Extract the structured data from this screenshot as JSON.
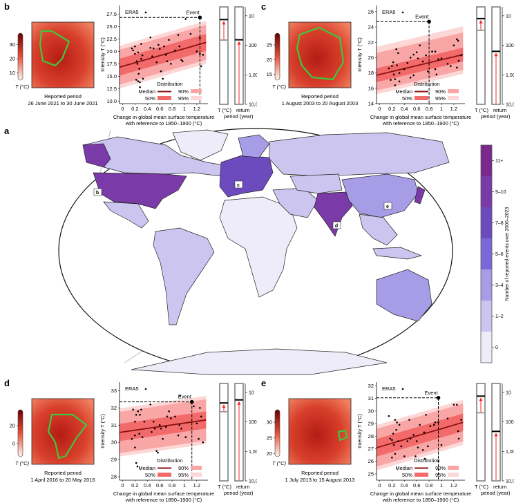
{
  "panels": [
    {
      "id": "b",
      "letter": "b",
      "caption_title": "Reported period",
      "caption_dates": "26 June 2021 to 30 June 2021",
      "colorbar_ticks": [
        10,
        20,
        30
      ],
      "colorbar_range": [
        5,
        38
      ],
      "colorbar_title": "T (°C)"
    },
    {
      "id": "c",
      "letter": "c",
      "caption_title": "Reported period",
      "caption_dates": "1 August 2003 to 20 August 2003",
      "colorbar_ticks": [
        15,
        20,
        25
      ],
      "colorbar_range": [
        13,
        29
      ],
      "colorbar_title": "T (°C)"
    },
    {
      "id": "d",
      "letter": "d",
      "caption_title": "Reported period",
      "caption_dates": "1 April 2016 to 20 May 2016",
      "colorbar_ticks": [
        0,
        20
      ],
      "colorbar_range": [
        -15,
        38
      ],
      "colorbar_title": "T (°C)"
    },
    {
      "id": "e",
      "letter": "e",
      "caption_title": "Reported period",
      "caption_dates": "1 July 2013 to 15 August 2013",
      "colorbar_ticks": [
        20,
        25,
        30
      ],
      "colorbar_range": [
        19,
        34
      ],
      "colorbar_title": "T (°C)"
    }
  ],
  "common": {
    "ylabel": "Intensity T (°C)",
    "xlabel_line1": "Change in global mean surface temperature",
    "xlabel_line2": "with reference to 1850–1900 (°C)",
    "era5_label": "ERA5",
    "event_label": "Event",
    "legend_title": "Distribution",
    "legend_median": "Median",
    "legend_50": "50%",
    "legend_90": "90%",
    "legend_95": "95%",
    "bar_label_left": "T (°C)",
    "bar_label_right_1": "return",
    "bar_label_right_2": "period (year)",
    "return_period_ticks": [
      "10",
      "100",
      "1,000",
      "10,000"
    ],
    "colors": {
      "median": "#8b1010",
      "band50": "#f36a6a",
      "band90": "#f9a6a6",
      "band95": "#fdd6d6",
      "arrow": "#ff2020",
      "event_line": "#000000",
      "baseline_line": "#9a9a9a"
    }
  },
  "chart_data": [
    {
      "panel": "b",
      "type": "scatter",
      "xlim": [
        -0.05,
        1.38
      ],
      "ylim": [
        9.5,
        29.2
      ],
      "xticks": [
        0,
        0.2,
        0.4,
        0.6,
        0.8,
        1.0,
        1.2
      ],
      "yticks": [
        10.0,
        12.5,
        15.0,
        17.5,
        20.0,
        22.5,
        25.0,
        27.5
      ],
      "ytick_decimals": 1,
      "median": [
        [
          0,
          17.0
        ],
        [
          1.35,
          21.8
        ]
      ],
      "band50": [
        -1.7,
        1.7
      ],
      "band90": [
        -3.5,
        3.5
      ],
      "band95": [
        -4.3,
        4.3
      ],
      "event": [
        1.25,
        26.8
      ],
      "return_period_years": 65,
      "left_bar_event_level": 0.87,
      "left_bar_baseline_level": 0.66,
      "points": [
        [
          0.15,
          20.6
        ],
        [
          0.17,
          20.2
        ],
        [
          0.2,
          21
        ],
        [
          0.2,
          19.5
        ],
        [
          0.22,
          14.3
        ],
        [
          0.23,
          18
        ],
        [
          0.24,
          17.5
        ],
        [
          0.25,
          19.8
        ],
        [
          0.25,
          14
        ],
        [
          0.26,
          15.5
        ],
        [
          0.27,
          16.5
        ],
        [
          0.28,
          13.8
        ],
        [
          0.28,
          12.8
        ],
        [
          0.3,
          21.5
        ],
        [
          0.3,
          18.5
        ],
        [
          0.32,
          19.2
        ],
        [
          0.33,
          14.5
        ],
        [
          0.45,
          22.8
        ],
        [
          0.45,
          20.7
        ],
        [
          0.5,
          20.6
        ],
        [
          0.48,
          19
        ],
        [
          0.55,
          17.8
        ],
        [
          0.58,
          21.3
        ],
        [
          0.6,
          20.5
        ],
        [
          0.62,
          16
        ],
        [
          0.65,
          14.5
        ],
        [
          0.67,
          21
        ],
        [
          0.7,
          19.3
        ],
        [
          0.72,
          18
        ],
        [
          0.75,
          22.3
        ],
        [
          0.78,
          17.5
        ],
        [
          0.85,
          20.2
        ],
        [
          0.9,
          23.3
        ],
        [
          0.92,
          21
        ],
        [
          0.95,
          18.3
        ],
        [
          0.97,
          18
        ],
        [
          1.02,
          26.5
        ],
        [
          1.1,
          23.5
        ],
        [
          1.2,
          20
        ],
        [
          1.25,
          19.5
        ],
        [
          1.27,
          17
        ],
        [
          1.3,
          19.3
        ],
        [
          1.25,
          22.7
        ]
      ]
    },
    {
      "panel": "c",
      "type": "scatter",
      "xlim": [
        -0.05,
        1.38
      ],
      "ylim": [
        14,
        26.8
      ],
      "xticks": [
        0,
        0.2,
        0.4,
        0.6,
        0.8,
        1.0,
        1.2
      ],
      "yticks": [
        14,
        16,
        18,
        20,
        22,
        24,
        26
      ],
      "ytick_decimals": 0,
      "median": [
        [
          0,
          17.8
        ],
        [
          1.35,
          20.4
        ]
      ],
      "band50": [
        -0.9,
        0.9
      ],
      "band90": [
        -2.0,
        2.9
      ],
      "band95": [
        -2.5,
        3.7
      ],
      "event": [
        0.8,
        24.7
      ],
      "return_period_years": 160,
      "left_bar_event_level": 0.88,
      "left_bar_baseline_level": 0.76,
      "points": [
        [
          0.15,
          18.6
        ],
        [
          0.18,
          17.1
        ],
        [
          0.2,
          18.9
        ],
        [
          0.22,
          19.4
        ],
        [
          0.23,
          17.8
        ],
        [
          0.25,
          16.4
        ],
        [
          0.25,
          17.2
        ],
        [
          0.27,
          21.1
        ],
        [
          0.28,
          19
        ],
        [
          0.3,
          20.6
        ],
        [
          0.32,
          16.9
        ],
        [
          0.32,
          18
        ],
        [
          0.4,
          18.5
        ],
        [
          0.45,
          19.3
        ],
        [
          0.5,
          17.4
        ],
        [
          0.5,
          20
        ],
        [
          0.55,
          17.7
        ],
        [
          0.55,
          20.4
        ],
        [
          0.6,
          20.7
        ],
        [
          0.62,
          19.9
        ],
        [
          0.65,
          21.6
        ],
        [
          0.7,
          19.5
        ],
        [
          0.75,
          20.3
        ],
        [
          0.78,
          18.2
        ],
        [
          0.85,
          20.8
        ],
        [
          0.9,
          18.5
        ],
        [
          0.9,
          20.8
        ],
        [
          0.92,
          17.8
        ],
        [
          0.95,
          19.8
        ],
        [
          1.0,
          19.9
        ],
        [
          1.1,
          19.2
        ],
        [
          1.15,
          18.9
        ],
        [
          1.2,
          21.6
        ],
        [
          1.25,
          22.4
        ],
        [
          1.27,
          22.2
        ],
        [
          1.28,
          19.6
        ],
        [
          1.32,
          20.3
        ],
        [
          1.25,
          18.7
        ]
      ]
    },
    {
      "panel": "d",
      "type": "scatter",
      "xlim": [
        -0.05,
        1.38
      ],
      "ylim": [
        27.8,
        33.5
      ],
      "xticks": [
        0,
        0.2,
        0.4,
        0.6,
        0.8,
        1.0,
        1.2
      ],
      "yticks": [
        28,
        29,
        30,
        31,
        32,
        33
      ],
      "ytick_decimals": 0,
      "median": [
        [
          0,
          30.6
        ],
        [
          1.35,
          31.3
        ]
      ],
      "band50": [
        -0.5,
        0.5
      ],
      "band90": [
        -1.2,
        1.2
      ],
      "band95": [
        -1.4,
        1.4
      ],
      "event": [
        1.12,
        32.35
      ],
      "return_period_years": 18,
      "left_bar_event_level": 0.8,
      "left_bar_baseline_level": 0.71,
      "points": [
        [
          0.15,
          30.2
        ],
        [
          0.17,
          31.9
        ],
        [
          0.2,
          31.2
        ],
        [
          0.2,
          30.4
        ],
        [
          0.2,
          29.7
        ],
        [
          0.22,
          31.6
        ],
        [
          0.22,
          28.8
        ],
        [
          0.24,
          28.6
        ],
        [
          0.25,
          31.8
        ],
        [
          0.27,
          30.5
        ],
        [
          0.28,
          31.6
        ],
        [
          0.3,
          31.9
        ],
        [
          0.32,
          30.3
        ],
        [
          0.35,
          31.2
        ],
        [
          0.45,
          32.2
        ],
        [
          0.47,
          30.6
        ],
        [
          0.5,
          31.2
        ],
        [
          0.52,
          30.8
        ],
        [
          0.55,
          29.5
        ],
        [
          0.57,
          29.4
        ],
        [
          0.6,
          31
        ],
        [
          0.62,
          30.8
        ],
        [
          0.65,
          30.2
        ],
        [
          0.7,
          30.9
        ],
        [
          0.72,
          31.5
        ],
        [
          0.75,
          31.8
        ],
        [
          0.78,
          31.4
        ],
        [
          0.85,
          31.5
        ],
        [
          0.9,
          30.4
        ],
        [
          0.92,
          31
        ],
        [
          0.93,
          32.7
        ],
        [
          0.95,
          30.8
        ],
        [
          1.02,
          30.3
        ],
        [
          1.15,
          32.1
        ],
        [
          1.2,
          31.1
        ],
        [
          1.23,
          30.2
        ],
        [
          1.25,
          32
        ],
        [
          1.27,
          31.5
        ],
        [
          1.3,
          30
        ]
      ]
    },
    {
      "panel": "e",
      "type": "scatter",
      "xlim": [
        -0.05,
        1.38
      ],
      "ylim": [
        24.5,
        32.3
      ],
      "xticks": [
        0,
        0.2,
        0.4,
        0.6,
        0.8,
        1.0,
        1.2
      ],
      "yticks": [
        25,
        26,
        27,
        28,
        29,
        30,
        31,
        32
      ],
      "ytick_decimals": 0,
      "median": [
        [
          0,
          27.15
        ],
        [
          1.35,
          29.1
        ]
      ],
      "band50": [
        -0.7,
        0.7
      ],
      "band90": [
        -1.5,
        1.5
      ],
      "band95": [
        -1.8,
        1.8
      ],
      "event": [
        0.95,
        31.05
      ],
      "return_period_years": 210,
      "left_bar_event_level": 0.87,
      "left_bar_baseline_level": 0.7,
      "points": [
        [
          0.15,
          29.6
        ],
        [
          0.17,
          27.8
        ],
        [
          0.2,
          27.7
        ],
        [
          0.2,
          26.3
        ],
        [
          0.22,
          28.2
        ],
        [
          0.23,
          27.3
        ],
        [
          0.25,
          29.3
        ],
        [
          0.25,
          26.6
        ],
        [
          0.27,
          28.5
        ],
        [
          0.28,
          29.1
        ],
        [
          0.3,
          27.6
        ],
        [
          0.32,
          28.9
        ],
        [
          0.35,
          27.2
        ],
        [
          0.4,
          26.4
        ],
        [
          0.45,
          27.6
        ],
        [
          0.48,
          29.3
        ],
        [
          0.5,
          27.8
        ],
        [
          0.55,
          28.1
        ],
        [
          0.58,
          26.4
        ],
        [
          0.6,
          27.6
        ],
        [
          0.62,
          27.1
        ],
        [
          0.65,
          28.9
        ],
        [
          0.7,
          26.9
        ],
        [
          0.72,
          28.3
        ],
        [
          0.75,
          29.7
        ],
        [
          0.78,
          27.2
        ],
        [
          0.82,
          28.8
        ],
        [
          0.88,
          28.9
        ],
        [
          0.9,
          29.1
        ],
        [
          0.95,
          29.1
        ],
        [
          1.0,
          27.3
        ],
        [
          1.1,
          29.4
        ],
        [
          1.2,
          30.5
        ],
        [
          1.25,
          30.5
        ],
        [
          1.27,
          28.4
        ],
        [
          1.28,
          27.8
        ],
        [
          1.32,
          29.3
        ],
        [
          0.73,
          26.2
        ]
      ]
    }
  ],
  "world_map": {
    "letter": "a",
    "legend_title": "Number of reported events over 2000–2023",
    "categories": [
      {
        "label": "0",
        "color": "#eeecf8"
      },
      {
        "label": "1–2",
        "color": "#cbc5ef"
      },
      {
        "label": "3–4",
        "color": "#a69de6"
      },
      {
        "label": "5–6",
        "color": "#7b68d8"
      },
      {
        "label": "7–8",
        "color": "#6c4bbf"
      },
      {
        "label": "9–10",
        "color": "#7a3aa8"
      },
      {
        "label": "11+",
        "color": "#7b288e"
      }
    ],
    "markers": [
      "b",
      "c",
      "d",
      "e"
    ]
  }
}
